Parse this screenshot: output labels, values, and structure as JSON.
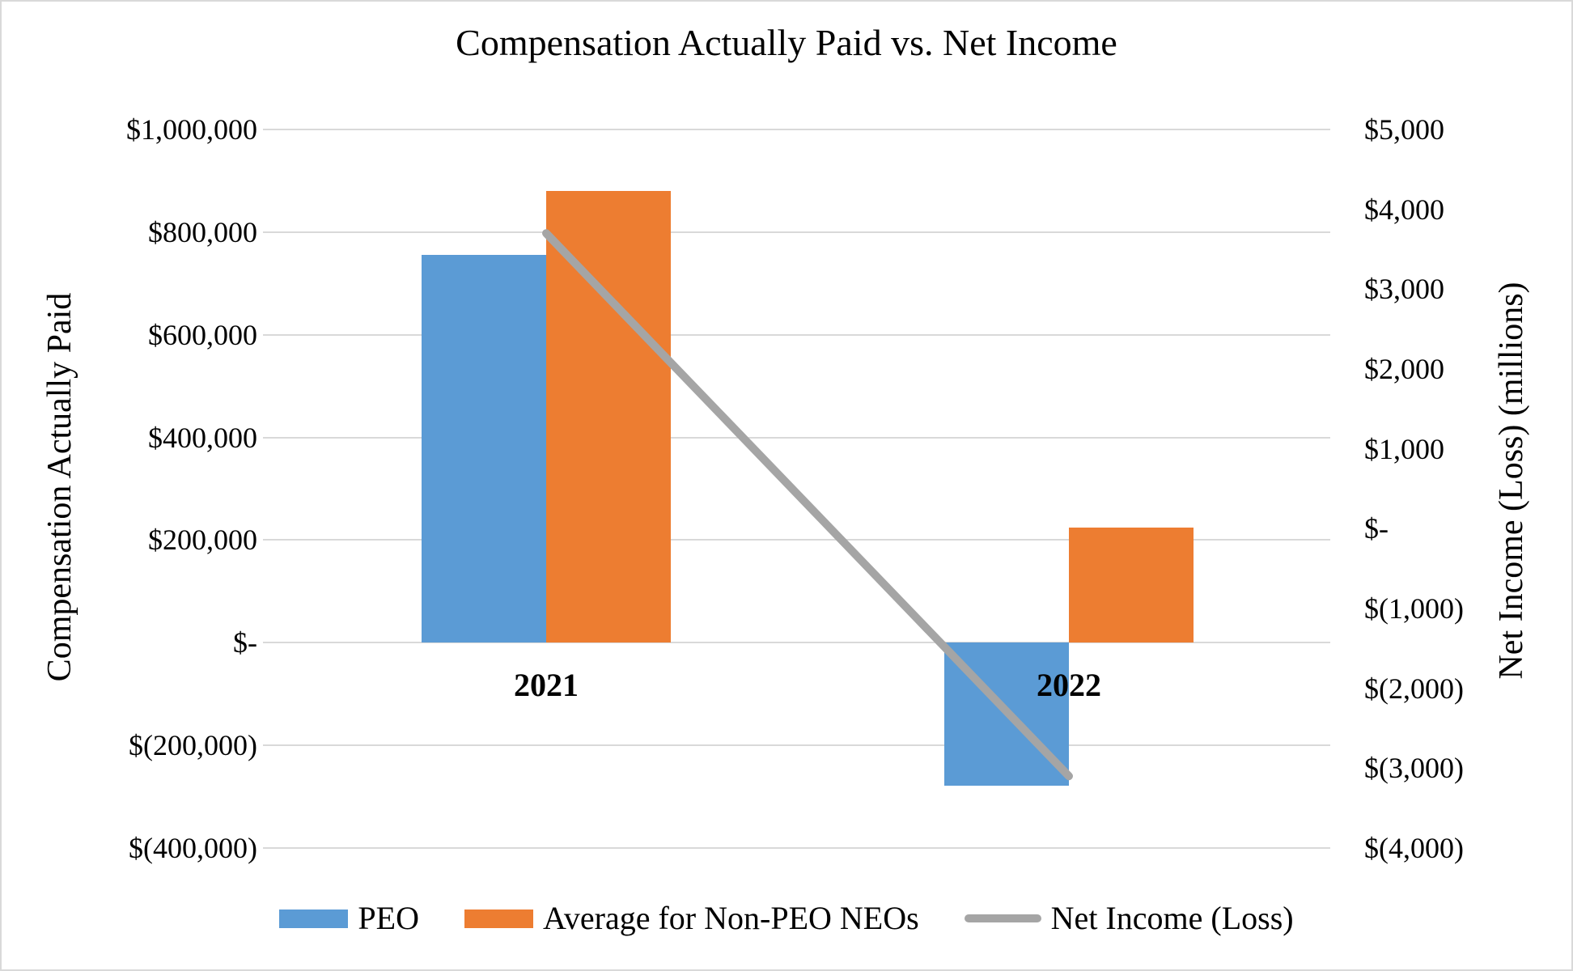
{
  "title": "Compensation Actually Paid vs. Net Income",
  "chart_data": {
    "type": "combo-bar-line",
    "categories": [
      "2021",
      "2022"
    ],
    "series": [
      {
        "name": "PEO",
        "type": "bar",
        "axis": "left",
        "color": "#5B9BD5",
        "values": [
          755000,
          -278000
        ]
      },
      {
        "name": "Average for Non-PEO NEOs",
        "type": "bar",
        "axis": "left",
        "color": "#ED7D31",
        "values": [
          880000,
          225000
        ]
      },
      {
        "name": "Net Income (Loss)",
        "type": "line",
        "axis": "right",
        "color": "#A5A5A5",
        "values": [
          3700,
          -3100
        ]
      }
    ],
    "left_axis": {
      "label": "Compensation Actually Paid",
      "min": -400000,
      "max": 1000000,
      "tick_step": 200000,
      "ticks": [
        "$1,000,000",
        "$800,000",
        "$600,000",
        "$400,000",
        "$200,000",
        "$-",
        "$(200,000)",
        "$(400,000)"
      ]
    },
    "right_axis": {
      "label": "Net Income (Loss) (millions)",
      "min": -4000,
      "max": 5000,
      "tick_step": 1000,
      "ticks": [
        "$5,000",
        "$4,000",
        "$3,000",
        "$2,000",
        "$1,000",
        "$-",
        "$(1,000)",
        "$(2,000)",
        "$(3,000)",
        "$(4,000)"
      ]
    },
    "legend": {
      "position": "bottom",
      "entries": [
        "PEO",
        "Average for Non-PEO NEOs",
        "Net Income (Loss)"
      ]
    },
    "grid": true
  },
  "colors": {
    "peo_bar": "#5B9BD5",
    "non_peo_bar": "#ED7D31",
    "net_income_line": "#A5A5A5",
    "gridline": "#D9D9D9",
    "text": "#000000",
    "border": "#D9D9D9",
    "background": "#FFFFFF"
  }
}
